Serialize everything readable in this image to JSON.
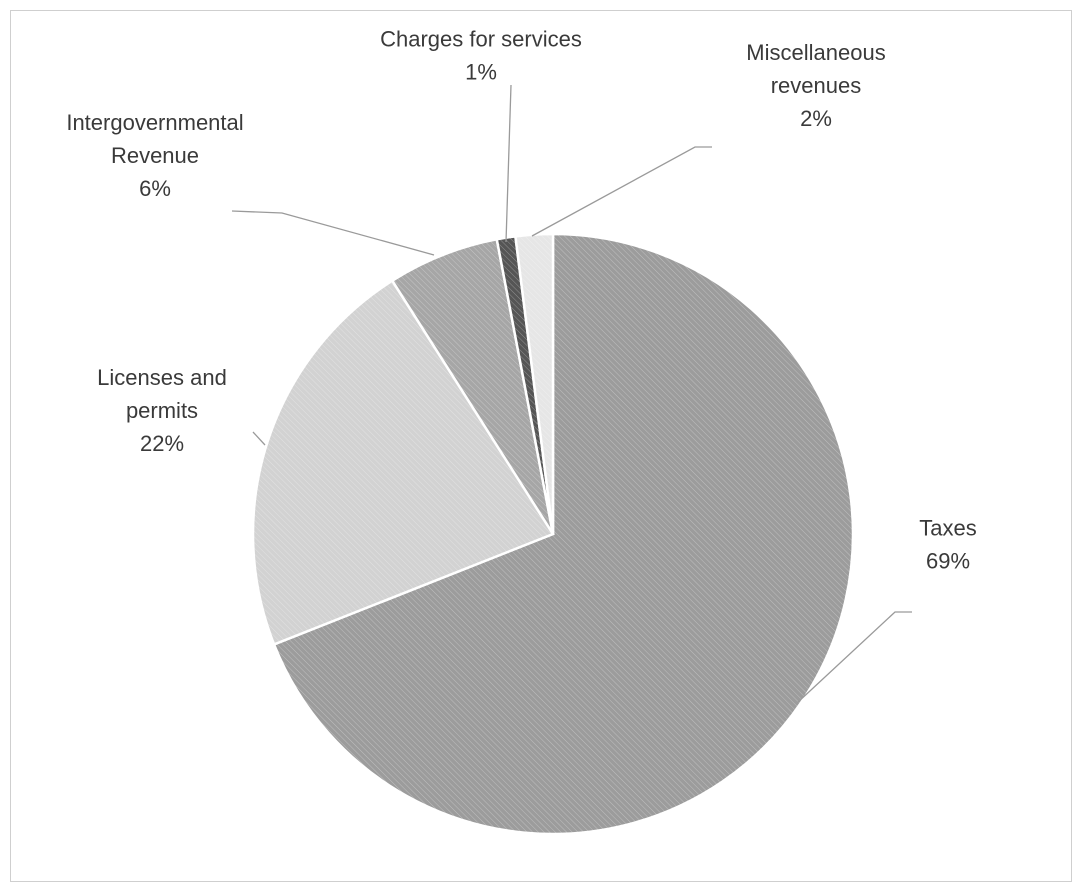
{
  "chart_data": {
    "type": "pie",
    "title": "",
    "slices": [
      {
        "name": "Taxes",
        "label_lines": [
          "Taxes"
        ],
        "value": 69,
        "value_label": "69%",
        "color": "#9c9c9c"
      },
      {
        "name": "Licenses and permits",
        "label_lines": [
          "Licenses and",
          "permits"
        ],
        "value": 22,
        "value_label": "22%",
        "color": "#d2d2d2"
      },
      {
        "name": "Intergovernmental Revenue",
        "label_lines": [
          "Intergovernmental",
          "Revenue"
        ],
        "value": 6,
        "value_label": "6%",
        "color": "#a6a6a6"
      },
      {
        "name": "Charges for services",
        "label_lines": [
          "Charges for services"
        ],
        "value": 1,
        "value_label": "1%",
        "color": "#555555"
      },
      {
        "name": "Miscellaneous revenues",
        "label_lines": [
          "Miscellaneous",
          "revenues"
        ],
        "value": 2,
        "value_label": "2%",
        "color": "#e6e6e6"
      }
    ],
    "start_angle_deg": 0,
    "direction": "clockwise",
    "legend": "none",
    "data_labels": "outside with leader lines"
  }
}
